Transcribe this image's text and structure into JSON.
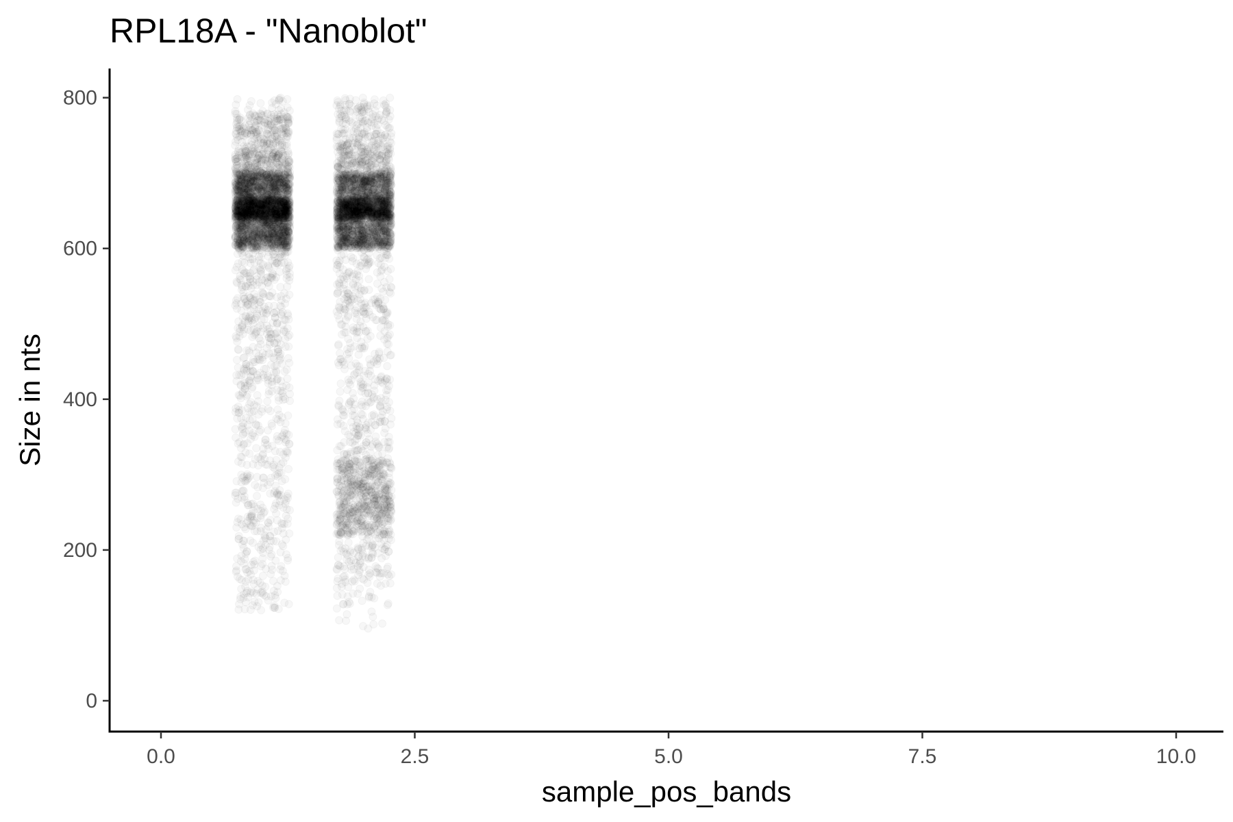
{
  "chart_data": {
    "type": "scatter",
    "title": "RPL18A - \"Nanoblot\"",
    "xlabel": "sample_pos_bands",
    "ylabel": "Size in nts",
    "xlim": [
      -0.5,
      10.5
    ],
    "ylim": [
      -40,
      840
    ],
    "x_ticks": [
      0,
      2.5,
      5,
      7.5,
      10
    ],
    "x_tick_labels": [
      "0.0",
      "2.5",
      "5.0",
      "7.5",
      "10.0"
    ],
    "y_ticks": [
      0,
      200,
      400,
      600,
      800
    ],
    "y_tick_labels": [
      "0",
      "200",
      "400",
      "600",
      "800"
    ],
    "grid": false,
    "legend": "none",
    "point_color": "#000000",
    "point_alpha": 0.03,
    "jitter_width": 0.27,
    "series": [
      {
        "x": 1,
        "y_range": [
          120,
          800
        ],
        "density_profile": [
          {
            "y": 120,
            "weight": 1
          },
          {
            "y": 200,
            "weight": 2
          },
          {
            "y": 300,
            "weight": 2
          },
          {
            "y": 400,
            "weight": 2
          },
          {
            "y": 500,
            "weight": 3
          },
          {
            "y": 540,
            "weight": 3
          },
          {
            "y": 600,
            "weight": 4
          },
          {
            "y": 640,
            "weight": 60
          },
          {
            "y": 650,
            "weight": 90
          },
          {
            "y": 665,
            "weight": 60
          },
          {
            "y": 700,
            "weight": 12
          },
          {
            "y": 730,
            "weight": 10
          },
          {
            "y": 780,
            "weight": 3
          },
          {
            "y": 800,
            "weight": 1
          }
        ]
      },
      {
        "x": 2,
        "y_range": [
          95,
          800
        ],
        "density_profile": [
          {
            "y": 95,
            "weight": 0.4
          },
          {
            "y": 150,
            "weight": 1
          },
          {
            "y": 220,
            "weight": 2
          },
          {
            "y": 250,
            "weight": 12
          },
          {
            "y": 260,
            "weight": 12
          },
          {
            "y": 320,
            "weight": 3
          },
          {
            "y": 400,
            "weight": 1.5
          },
          {
            "y": 500,
            "weight": 2
          },
          {
            "y": 600,
            "weight": 3
          },
          {
            "y": 640,
            "weight": 45
          },
          {
            "y": 652,
            "weight": 65
          },
          {
            "y": 665,
            "weight": 40
          },
          {
            "y": 700,
            "weight": 8
          },
          {
            "y": 740,
            "weight": 6
          },
          {
            "y": 800,
            "weight": 1
          }
        ]
      }
    ]
  }
}
